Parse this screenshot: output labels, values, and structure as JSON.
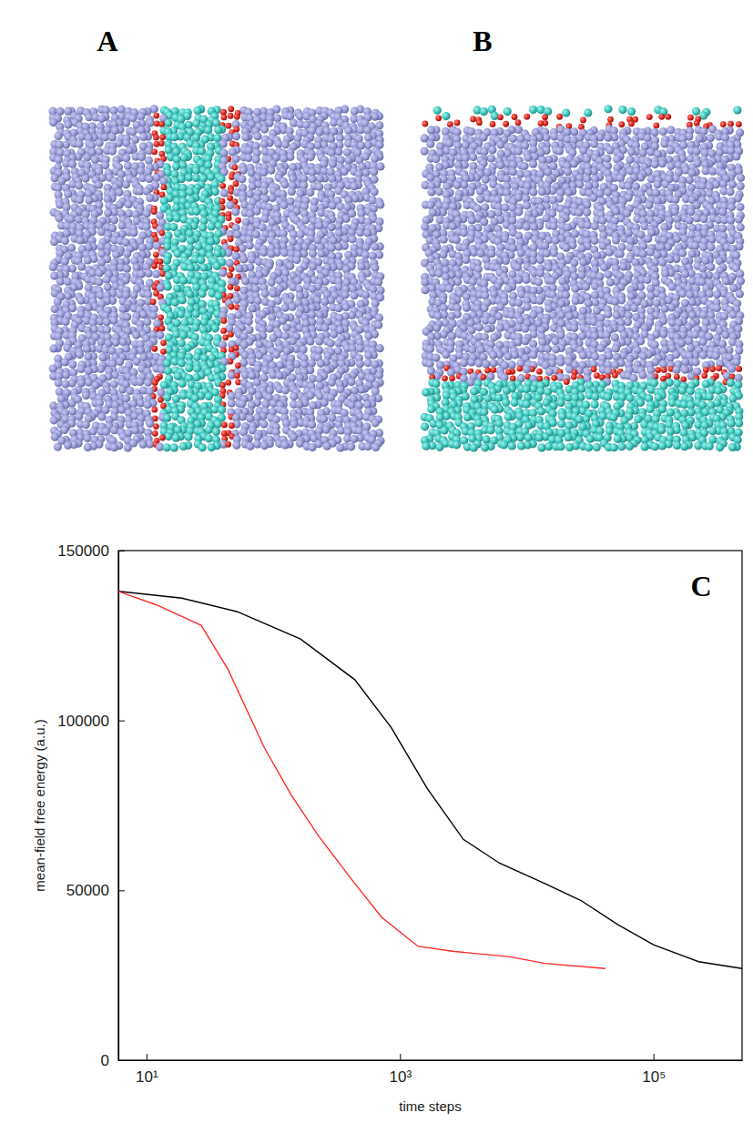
{
  "snapshots": [
    {
      "label": "A"
    },
    {
      "label": "B"
    }
  ],
  "chart_data": {
    "type": "line",
    "annotations": [
      "C"
    ],
    "x_label": "time steps",
    "y_label": "mean-field free energy (a.u.)",
    "log": "x",
    "grid": false,
    "xlim": [
      6,
      500000
    ],
    "xticks": [
      {
        "value": 10,
        "label": "10¹"
      },
      {
        "value": 1000,
        "label": "10³"
      },
      {
        "value": 100000,
        "label": "10⁵"
      }
    ],
    "ylim": [
      0,
      150000
    ],
    "yticks": [
      0,
      50000,
      100000,
      150000
    ],
    "series": [
      {
        "color": "#000000",
        "x": [
          6,
          19,
          52,
          164,
          440,
          850,
          1640,
          3160,
          6100,
          13900,
          26800,
          51800,
          100000,
          227000,
          500000
        ],
        "values": [
          138000,
          136000,
          132000,
          124000,
          112000,
          98000,
          80000,
          65000,
          58000,
          52000,
          47000,
          40000,
          34000,
          29000,
          27000
        ]
      },
      {
        "color": "#ff2a2a",
        "x": [
          6,
          12,
          27,
          44,
          85,
          139,
          228,
          440,
          720,
          1390,
          2680,
          7200,
          13900,
          41800
        ],
        "values": [
          138000,
          134000,
          128000,
          115000,
          92000,
          78000,
          66000,
          52000,
          42000,
          33500,
          32000,
          30500,
          28500,
          27000
        ]
      }
    ]
  }
}
